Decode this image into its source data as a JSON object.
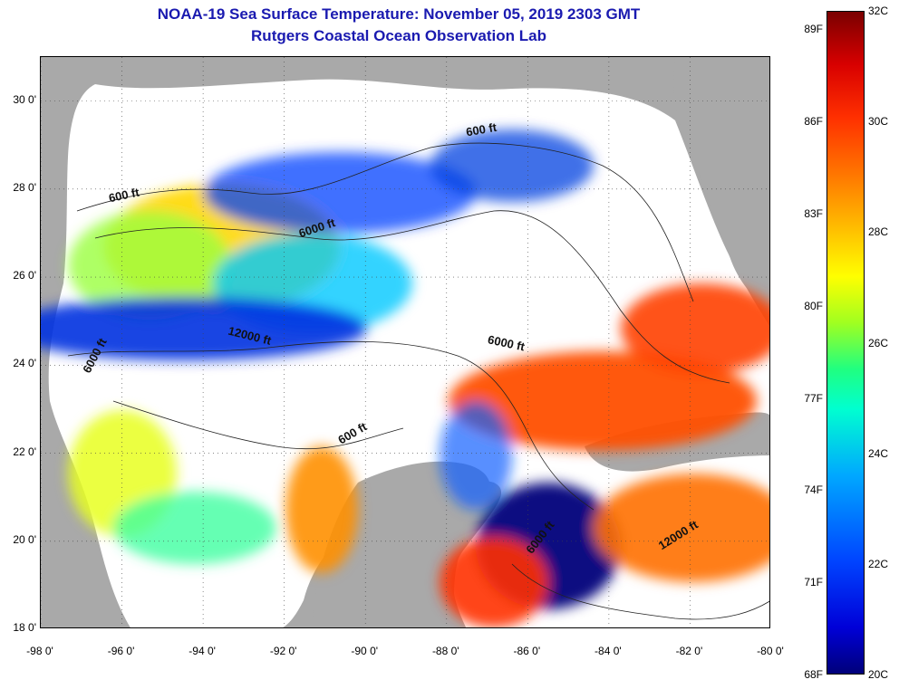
{
  "header": {
    "title": "NOAA-19 Sea Surface Temperature:  November 05, 2019 2303 GMT",
    "subtitle": "Rutgers Coastal Ocean Observation Lab"
  },
  "map": {
    "lon_range": [
      -98,
      -80
    ],
    "lat_range": [
      18,
      31
    ],
    "lat_ticks": [
      {
        "value": 30,
        "label": "30 0'"
      },
      {
        "value": 28,
        "label": "28 0'"
      },
      {
        "value": 26,
        "label": "26 0'"
      },
      {
        "value": 24,
        "label": "24 0'"
      },
      {
        "value": 22,
        "label": "22 0'"
      },
      {
        "value": 20,
        "label": "20 0'"
      },
      {
        "value": 18,
        "label": "18 0'"
      }
    ],
    "lon_ticks": [
      {
        "value": -98,
        "label": "-98 0'"
      },
      {
        "value": -96,
        "label": "-96 0'"
      },
      {
        "value": -94,
        "label": "-94 0'"
      },
      {
        "value": -92,
        "label": "-92 0'"
      },
      {
        "value": -90,
        "label": "-90 0'"
      },
      {
        "value": -88,
        "label": "-88 0'"
      },
      {
        "value": -86,
        "label": "-86 0'"
      },
      {
        "value": -84,
        "label": "-84 0'"
      },
      {
        "value": -82,
        "label": "-82 0'"
      },
      {
        "value": -80,
        "label": "-80 0'"
      }
    ],
    "grid": "dotted",
    "land_color": "#a9a9a9",
    "cloud_color": "#ffffff",
    "contour_labels": [
      {
        "text": "600 ft",
        "lon": -96.3,
        "lat": 27.7,
        "rotate": -12
      },
      {
        "text": "600 ft",
        "lon": -87.5,
        "lat": 29.2,
        "rotate": -10
      },
      {
        "text": "6000 ft",
        "lon": -91.6,
        "lat": 26.9,
        "rotate": -18
      },
      {
        "text": "12000 ft",
        "lon": -93.4,
        "lat": 24.7,
        "rotate": 14
      },
      {
        "text": "6000 ft",
        "lon": -87.0,
        "lat": 24.5,
        "rotate": 12
      },
      {
        "text": "6000 ft",
        "lon": -96.8,
        "lat": 23.8,
        "rotate": -62
      },
      {
        "text": "600 ft",
        "lon": -90.6,
        "lat": 22.2,
        "rotate": -30
      },
      {
        "text": "12000 ft",
        "lon": -82.7,
        "lat": 19.8,
        "rotate": -32
      },
      {
        "text": "6000 ft",
        "lon": -85.9,
        "lat": 19.7,
        "rotate": -52
      }
    ]
  },
  "colorbar": {
    "range_c": [
      20,
      32
    ],
    "celsius_labels": [
      {
        "value": 32,
        "label": "32C"
      },
      {
        "value": 30,
        "label": "30C"
      },
      {
        "value": 28,
        "label": "28C"
      },
      {
        "value": 26,
        "label": "26C"
      },
      {
        "value": 24,
        "label": "24C"
      },
      {
        "value": 22,
        "label": "22C"
      },
      {
        "value": 20,
        "label": "20C"
      }
    ],
    "fahrenheit_labels": [
      {
        "value": 89,
        "label": "89F"
      },
      {
        "value": 86,
        "label": "86F"
      },
      {
        "value": 83,
        "label": "83F"
      },
      {
        "value": 80,
        "label": "80F"
      },
      {
        "value": 77,
        "label": "77F"
      },
      {
        "value": 74,
        "label": "74F"
      },
      {
        "value": 71,
        "label": "71F"
      },
      {
        "value": 68,
        "label": "68F"
      }
    ]
  }
}
